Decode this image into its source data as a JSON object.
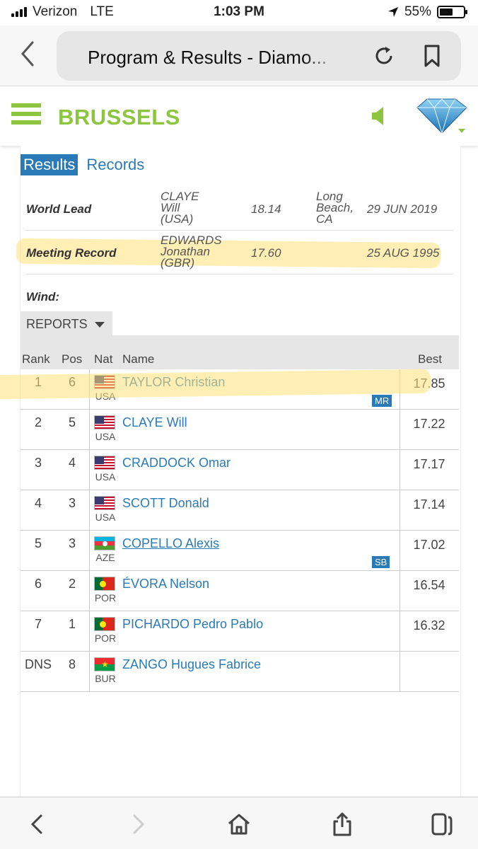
{
  "status_bar": {
    "carrier": "Verizon",
    "network": "LTE",
    "time": "1:03 PM",
    "battery": "55%",
    "battery_level": 0.55
  },
  "url_bar": {
    "title": "Program & Results - Diamo..."
  },
  "site_header": {
    "city": "BRUSSELS"
  },
  "tabs": {
    "results": "Results",
    "records": "Records"
  },
  "records": [
    {
      "label": "World Lead",
      "name_lines": [
        "CLAYE",
        "Will",
        "(USA)"
      ],
      "value": "18.14",
      "location_lines": [
        "Long",
        "Beach,",
        "CA"
      ],
      "date": "29 JUN 2019"
    },
    {
      "label": "Meeting Record",
      "name_lines": [
        "EDWARDS",
        "Jonathan",
        "(GBR)"
      ],
      "value": "17.60",
      "location_lines": [],
      "date": "25 AUG 1995"
    },
    {
      "label": "Wind:"
    }
  ],
  "reports_button": "REPORTS",
  "results_table": {
    "headers": {
      "rank": "Rank",
      "pos": "Pos",
      "nat": "Nat",
      "name": "Name",
      "best": "Best"
    },
    "rows": [
      {
        "rank": "1",
        "pos": "6",
        "nat": "USA",
        "flag": "usa",
        "name": "TAYLOR Christian",
        "best": "17.85",
        "badge": "MR"
      },
      {
        "rank": "2",
        "pos": "5",
        "nat": "USA",
        "flag": "usa",
        "name": "CLAYE Will",
        "best": "17.22",
        "badge": ""
      },
      {
        "rank": "3",
        "pos": "4",
        "nat": "USA",
        "flag": "usa",
        "name": "CRADDOCK Omar",
        "best": "17.17",
        "badge": ""
      },
      {
        "rank": "4",
        "pos": "3",
        "nat": "USA",
        "flag": "usa",
        "name": "SCOTT Donald",
        "best": "17.14",
        "badge": ""
      },
      {
        "rank": "5",
        "pos": "3",
        "nat": "AZE",
        "flag": "aze",
        "name": "COPELLO Alexis",
        "best": "17.02",
        "badge": "SB"
      },
      {
        "rank": "6",
        "pos": "2",
        "nat": "POR",
        "flag": "por",
        "name": "ÉVORA Nelson",
        "best": "16.54",
        "badge": ""
      },
      {
        "rank": "7",
        "pos": "1",
        "nat": "POR",
        "flag": "por",
        "name": "PICHARDO Pedro Pablo",
        "best": "16.32",
        "badge": ""
      },
      {
        "rank": "DNS",
        "pos": "8",
        "nat": "BUR",
        "flag": "bur",
        "name": "ZANGO Hugues Fabrice",
        "best": "",
        "badge": ""
      }
    ]
  },
  "colors": {
    "accent_green": "#8cc63f",
    "link_blue": "#2a7ab8",
    "highlight": "#ffe178"
  }
}
